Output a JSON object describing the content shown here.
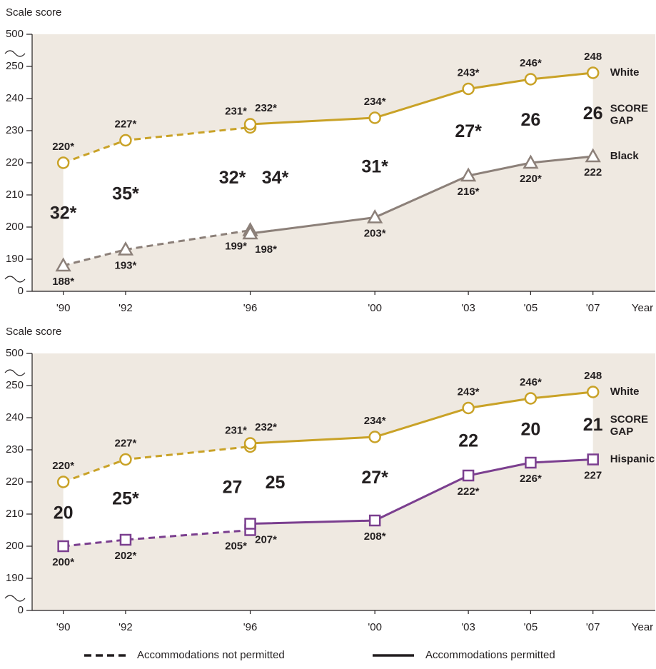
{
  "chart_data": [
    {
      "type": "line",
      "y_label": "Scale score",
      "x_label": "Year",
      "background": "#efe9e1",
      "band_color": "#ffffff",
      "xlim": [
        1989,
        2009
      ],
      "xticks": [
        {
          "value": 1990,
          "label": "'90"
        },
        {
          "value": 1992,
          "label": "'92"
        },
        {
          "value": 1996,
          "label": "'96"
        },
        {
          "value": 2000,
          "label": "'00"
        },
        {
          "value": 2003,
          "label": "'03"
        },
        {
          "value": 2005,
          "label": "'05"
        },
        {
          "value": 2007,
          "label": "'07"
        }
      ],
      "ylim": [
        180,
        260
      ],
      "axis_break": true,
      "yticks": [
        0,
        190,
        200,
        210,
        220,
        230,
        240,
        250,
        500
      ],
      "series": [
        {
          "name": "White",
          "color": "#c9a227",
          "marker": "circle",
          "segments": [
            {
              "style": "dashed",
              "x": [
                1990,
                1992,
                1996
              ],
              "values": [
                220,
                227,
                231
              ],
              "value_labels": [
                "220*",
                "227*",
                "231*"
              ]
            },
            {
              "style": "solid",
              "x": [
                1996,
                2000,
                2003,
                2005,
                2007
              ],
              "values": [
                232,
                234,
                243,
                246,
                248
              ],
              "value_labels": [
                "232*",
                "234*",
                "243*",
                "246*",
                "248"
              ]
            }
          ]
        },
        {
          "name": "Black",
          "color": "#8c8079",
          "marker": "triangle",
          "segments": [
            {
              "style": "dashed",
              "x": [
                1990,
                1992,
                1996
              ],
              "values": [
                188,
                193,
                199
              ],
              "value_labels": [
                "188*",
                "193*",
                "199*"
              ]
            },
            {
              "style": "solid",
              "x": [
                1996,
                2000,
                2003,
                2005,
                2007
              ],
              "values": [
                198,
                203,
                216,
                220,
                222
              ],
              "value_labels": [
                "198*",
                "203*",
                "216*",
                "220*",
                "222"
              ]
            }
          ]
        }
      ],
      "gaps": {
        "x": [
          1990,
          1992,
          1996,
          1996,
          2000,
          2003,
          2005,
          2007
        ],
        "values": [
          32,
          35,
          32,
          34,
          31,
          27,
          26,
          26
        ],
        "value_labels": [
          "32*",
          "35*",
          "32*",
          "34*",
          "31*",
          "27*",
          "26",
          "26"
        ]
      },
      "gap_label": [
        "SCORE",
        "GAP"
      ]
    },
    {
      "type": "line",
      "y_label": "Scale score",
      "x_label": "Year",
      "background": "#efe9e1",
      "band_color": "#ffffff",
      "xlim": [
        1989,
        2009
      ],
      "xticks": [
        {
          "value": 1990,
          "label": "'90"
        },
        {
          "value": 1992,
          "label": "'92"
        },
        {
          "value": 1996,
          "label": "'96"
        },
        {
          "value": 2000,
          "label": "'00"
        },
        {
          "value": 2003,
          "label": "'03"
        },
        {
          "value": 2005,
          "label": "'05"
        },
        {
          "value": 2007,
          "label": "'07"
        }
      ],
      "ylim": [
        180,
        260
      ],
      "axis_break": true,
      "yticks": [
        0,
        190,
        200,
        210,
        220,
        230,
        240,
        250,
        500
      ],
      "series": [
        {
          "name": "White",
          "color": "#c9a227",
          "marker": "circle",
          "segments": [
            {
              "style": "dashed",
              "x": [
                1990,
                1992,
                1996
              ],
              "values": [
                220,
                227,
                231
              ],
              "value_labels": [
                "220*",
                "227*",
                "231*"
              ]
            },
            {
              "style": "solid",
              "x": [
                1996,
                2000,
                2003,
                2005,
                2007
              ],
              "values": [
                232,
                234,
                243,
                246,
                248
              ],
              "value_labels": [
                "232*",
                "234*",
                "243*",
                "246*",
                "248"
              ]
            }
          ]
        },
        {
          "name": "Hispanic",
          "color": "#7b3f8f",
          "marker": "square",
          "segments": [
            {
              "style": "dashed",
              "x": [
                1990,
                1992,
                1996
              ],
              "values": [
                200,
                202,
                205
              ],
              "value_labels": [
                "200*",
                "202*",
                "205*"
              ]
            },
            {
              "style": "solid",
              "x": [
                1996,
                2000,
                2003,
                2005,
                2007
              ],
              "values": [
                207,
                208,
                222,
                226,
                227
              ],
              "value_labels": [
                "207*",
                "208*",
                "222*",
                "226*",
                "227"
              ]
            }
          ]
        }
      ],
      "gaps": {
        "x": [
          1990,
          1992,
          1996,
          1996,
          2000,
          2003,
          2005,
          2007
        ],
        "values": [
          20,
          25,
          27,
          25,
          27,
          22,
          20,
          21
        ],
        "value_labels": [
          "20",
          "25*",
          "27",
          "25",
          "27*",
          "22",
          "20",
          "21"
        ]
      },
      "gap_label": [
        "SCORE",
        "GAP"
      ]
    }
  ],
  "legend": {
    "items": [
      {
        "label": "Accommodations not permitted",
        "style": "dashed"
      },
      {
        "label": "Accommodations permitted",
        "style": "solid"
      }
    ]
  }
}
